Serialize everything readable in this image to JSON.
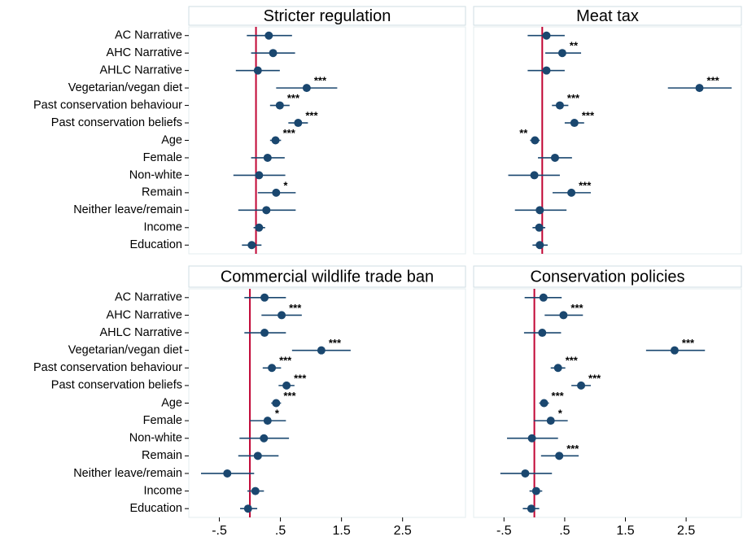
{
  "chart_data": [
    {
      "type": "coefplot",
      "title": "Stricter regulation",
      "categories": [
        "AC Narrative",
        "AHC Narrative",
        "AHLC Narrative",
        "Vegetarian/vegan diet",
        "Past conservation behaviour",
        "Past conservation beliefs",
        "Age",
        "Female",
        "Non-white",
        "Remain",
        "Neither leave/remain",
        "Income",
        "Education"
      ],
      "values": [
        0.21,
        0.28,
        0.03,
        0.83,
        0.39,
        0.69,
        0.32,
        0.19,
        0.05,
        0.33,
        0.17,
        0.05,
        -0.07
      ],
      "lower": [
        -0.15,
        -0.08,
        -0.33,
        0.33,
        0.23,
        0.53,
        0.23,
        -0.08,
        -0.37,
        0.03,
        -0.29,
        -0.04,
        -0.23
      ],
      "upper": [
        0.59,
        0.64,
        0.39,
        1.33,
        0.55,
        0.85,
        0.41,
        0.47,
        0.48,
        0.65,
        0.65,
        0.15,
        0.09
      ],
      "annotations": [
        null,
        null,
        null,
        "***",
        "***",
        "***",
        "***",
        null,
        null,
        "*",
        null,
        null,
        null
      ],
      "xlim": [
        -1.1,
        3.43
      ],
      "reference_line": 0,
      "reference_color": "#c10534",
      "color": "#1a476f"
    },
    {
      "type": "coefplot",
      "title": "Meat tax",
      "values": [
        0.07,
        0.33,
        0.07,
        2.59,
        0.29,
        0.53,
        -0.12,
        0.21,
        -0.13,
        0.48,
        -0.04,
        -0.05,
        -0.04
      ],
      "lower": [
        -0.24,
        0.05,
        -0.24,
        2.07,
        0.16,
        0.37,
        -0.2,
        -0.07,
        -0.56,
        0.17,
        -0.45,
        -0.16,
        -0.16
      ],
      "upper": [
        0.37,
        0.64,
        0.37,
        3.12,
        0.43,
        0.69,
        -0.04,
        0.49,
        0.29,
        0.8,
        0.4,
        0.05,
        0.09
      ],
      "annotations": [
        null,
        "**",
        null,
        "***",
        "***",
        "***",
        "**",
        null,
        null,
        "***",
        null,
        null,
        null
      ],
      "xlim": [
        -1.13,
        3.28
      ],
      "reference_line": 0,
      "reference_color": "#c10534",
      "color": "#1a476f"
    },
    {
      "type": "coefplot",
      "title": "Commercial wildlife trade ban",
      "categories": [
        "AC Narrative",
        "AHC Narrative",
        "AHLC Narrative",
        "Vegetarian/vegan diet",
        "Past conservation behaviour",
        "Past conservation beliefs",
        "Age",
        "Female",
        "Non-white",
        "Remain",
        "Neither leave/remain",
        "Income",
        "Education"
      ],
      "values": [
        0.24,
        0.52,
        0.24,
        1.17,
        0.36,
        0.6,
        0.43,
        0.29,
        0.23,
        0.13,
        -0.37,
        0.09,
        -0.03
      ],
      "lower": [
        -0.09,
        0.19,
        -0.09,
        0.69,
        0.21,
        0.47,
        0.35,
        0.0,
        -0.17,
        -0.19,
        -0.8,
        -0.04,
        -0.16
      ],
      "upper": [
        0.59,
        0.85,
        0.59,
        1.65,
        0.51,
        0.73,
        0.51,
        0.59,
        0.64,
        0.47,
        0.07,
        0.23,
        0.12
      ],
      "annotations": [
        null,
        "***",
        null,
        "***",
        "***",
        "***",
        "***",
        "*",
        null,
        null,
        null,
        null,
        null
      ],
      "xlim": [
        -1.0,
        3.53
      ],
      "reference_line": 0,
      "reference_color": "#c10534",
      "color": "#1a476f",
      "xticks": [
        {
          "value": -0.5,
          "label": "-.5"
        },
        {
          "value": 0.5,
          "label": ".5"
        },
        1.5,
        2.5
      ]
    },
    {
      "type": "coefplot",
      "title": "Conservation policies",
      "values": [
        0.15,
        0.48,
        0.13,
        2.31,
        0.39,
        0.77,
        0.16,
        0.27,
        -0.04,
        0.41,
        -0.15,
        0.03,
        -0.05
      ],
      "lower": [
        -0.16,
        0.17,
        -0.17,
        1.84,
        0.27,
        0.61,
        0.08,
        -0.01,
        -0.45,
        0.11,
        -0.56,
        -0.08,
        -0.19
      ],
      "upper": [
        0.45,
        0.8,
        0.44,
        2.81,
        0.51,
        0.93,
        0.24,
        0.55,
        0.39,
        0.73,
        0.29,
        0.13,
        0.08
      ],
      "annotations": [
        null,
        "***",
        null,
        "***",
        "***",
        "***",
        "***",
        "*",
        null,
        "***",
        null,
        null,
        null
      ],
      "xlim": [
        -1.0,
        3.41
      ],
      "reference_line": 0,
      "reference_color": "#c10534",
      "color": "#1a476f",
      "xticks": [
        {
          "value": -0.5,
          "label": "-.5"
        },
        {
          "value": 0.5,
          "label": ".5"
        },
        1.5,
        2.5
      ]
    }
  ]
}
